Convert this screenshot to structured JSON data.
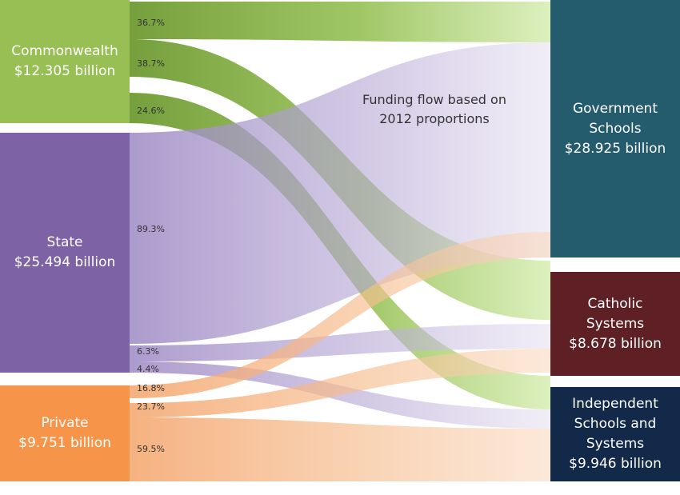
{
  "caption": "Funding flow based on\n2012 proportions",
  "sources": [
    {
      "id": "commonwealth",
      "label": "Commonwealth\n$12.305 billion",
      "color": "#97bf53"
    },
    {
      "id": "state",
      "label": "State\n$25.494 billion",
      "color": "#7d62a6"
    },
    {
      "id": "private",
      "label": "Private\n$9.751 billion",
      "color": "#f6944a"
    }
  ],
  "destinations": [
    {
      "id": "government",
      "label": "Government\nSchools\n$28.925 billion",
      "color": "#245b6d"
    },
    {
      "id": "catholic",
      "label": "Catholic\nSystems\n$8.678 billion",
      "color": "#5e2024"
    },
    {
      "id": "independent",
      "label": "Independent\nSchools and\nSystems\n$9.946 billion",
      "color": "#12294a"
    }
  ],
  "flows": [
    {
      "from": "commonwealth",
      "to": "government",
      "percent_label": "36.7%"
    },
    {
      "from": "commonwealth",
      "to": "catholic",
      "percent_label": "38.7%"
    },
    {
      "from": "commonwealth",
      "to": "independent",
      "percent_label": "24.6%"
    },
    {
      "from": "state",
      "to": "government",
      "percent_label": "89.3%"
    },
    {
      "from": "state",
      "to": "catholic",
      "percent_label": "6.3%"
    },
    {
      "from": "state",
      "to": "independent",
      "percent_label": "4.4%"
    },
    {
      "from": "private",
      "to": "government",
      "percent_label": "16.8%"
    },
    {
      "from": "private",
      "to": "catholic",
      "percent_label": "23.7%"
    },
    {
      "from": "private",
      "to": "independent",
      "percent_label": "59.5%"
    }
  ]
}
